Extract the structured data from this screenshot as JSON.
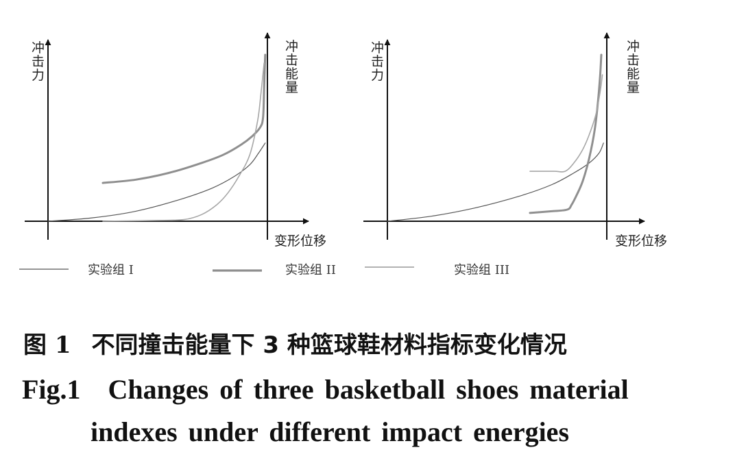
{
  "colors": {
    "axis": "#111111",
    "group_1": "#555555",
    "group_2": "#8f8f8f",
    "group_3": "#a6a6a6"
  },
  "chart_data": [
    {
      "type": "line",
      "panel": "left",
      "y_left_label": "冲击力",
      "y_right_label": "冲击能量",
      "x_label": "变形位移",
      "ticks": "none",
      "grid": false,
      "series": [
        {
          "name": "实验组 I",
          "key": "group_1",
          "points": [
            [
              0.0,
              0.0
            ],
            [
              0.2,
              0.02
            ],
            [
              0.4,
              0.06
            ],
            [
              0.6,
              0.13
            ],
            [
              0.75,
              0.2
            ],
            [
              0.85,
              0.27
            ],
            [
              0.92,
              0.34
            ],
            [
              0.96,
              0.41
            ],
            [
              0.99,
              0.47
            ]
          ]
        },
        {
          "name": "实验组 II",
          "key": "group_2",
          "points": [
            [
              0.25,
              0.23
            ],
            [
              0.4,
              0.25
            ],
            [
              0.55,
              0.29
            ],
            [
              0.7,
              0.35
            ],
            [
              0.8,
              0.4
            ],
            [
              0.88,
              0.46
            ],
            [
              0.93,
              0.51
            ],
            [
              0.965,
              0.56
            ],
            [
              0.98,
              0.62
            ],
            [
              0.985,
              0.8
            ],
            [
              0.99,
              1.0
            ]
          ]
        },
        {
          "name": "实验组 III",
          "key": "group_3",
          "points": [
            [
              0.25,
              0.0
            ],
            [
              0.5,
              0.005
            ],
            [
              0.62,
              0.01
            ],
            [
              0.7,
              0.04
            ],
            [
              0.77,
              0.1
            ],
            [
              0.82,
              0.17
            ],
            [
              0.87,
              0.27
            ],
            [
              0.92,
              0.4
            ],
            [
              0.955,
              0.6
            ],
            [
              0.97,
              0.76
            ],
            [
              0.985,
              0.95
            ]
          ]
        }
      ]
    },
    {
      "type": "line",
      "panel": "right",
      "y_left_label": "冲击力",
      "y_right_label": "冲击能量",
      "x_label": "变形位移",
      "ticks": "none",
      "grid": false,
      "series": [
        {
          "name": "实验组 I",
          "key": "group_1",
          "points": [
            [
              0.0,
              0.0
            ],
            [
              0.2,
              0.03
            ],
            [
              0.4,
              0.08
            ],
            [
              0.6,
              0.15
            ],
            [
              0.75,
              0.22
            ],
            [
              0.85,
              0.29
            ],
            [
              0.92,
              0.35
            ],
            [
              0.965,
              0.41
            ],
            [
              0.985,
              0.47
            ]
          ]
        },
        {
          "name": "实验组 II",
          "key": "group_2",
          "points": [
            [
              0.65,
              0.05
            ],
            [
              0.75,
              0.06
            ],
            [
              0.82,
              0.07
            ],
            [
              0.84,
              0.1
            ],
            [
              0.86,
              0.15
            ],
            [
              0.89,
              0.24
            ],
            [
              0.92,
              0.38
            ],
            [
              0.945,
              0.55
            ],
            [
              0.96,
              0.72
            ],
            [
              0.97,
              0.88
            ],
            [
              0.975,
              1.0
            ]
          ]
        },
        {
          "name": "实验组 III",
          "key": "group_3",
          "points": [
            [
              0.65,
              0.3
            ],
            [
              0.76,
              0.3
            ],
            [
              0.81,
              0.3
            ],
            [
              0.85,
              0.35
            ],
            [
              0.89,
              0.43
            ],
            [
              0.92,
              0.52
            ],
            [
              0.95,
              0.64
            ],
            [
              0.97,
              0.78
            ],
            [
              0.98,
              0.88
            ]
          ]
        }
      ]
    }
  ],
  "legend": [
    {
      "key": "group_1",
      "label": "实验组 I"
    },
    {
      "key": "group_2",
      "label": "实验组 II"
    },
    {
      "key": "group_3",
      "label": "实验组 III"
    }
  ],
  "caption": {
    "cn_number": "图 1",
    "cn_text": "不同撞击能量下 3 种篮球鞋材料指标变化情况",
    "en_number": "Fig.1",
    "en_line1": "Changes of three basketball shoes material",
    "en_line2": "indexes under different impact energies"
  }
}
